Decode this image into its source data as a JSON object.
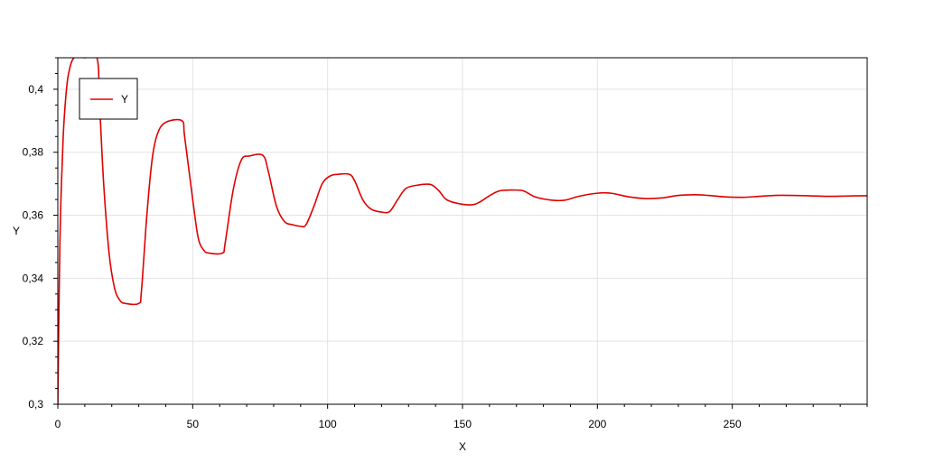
{
  "chart_data": {
    "type": "line",
    "xlabel": "X",
    "ylabel": "Y",
    "xlim": [
      0,
      300
    ],
    "ylim": [
      0.3,
      0.41
    ],
    "x_ticks": [
      0,
      50,
      100,
      150,
      200,
      250
    ],
    "x_tick_labels": [
      "0",
      "50",
      "100",
      "150",
      "200",
      "250"
    ],
    "y_ticks": [
      0.3,
      0.32,
      0.34,
      0.36,
      0.38,
      0.4
    ],
    "y_tick_labels": [
      "0,3",
      "0,32",
      "0,34",
      "0,36",
      "0,38",
      "0,4"
    ],
    "grid": true,
    "legend_position": "top-left",
    "series": [
      {
        "name": "Y",
        "color": "#e00000",
        "points": [
          [
            0,
            0.3
          ],
          [
            0.5,
            0.335
          ],
          [
            1,
            0.36
          ],
          [
            2,
            0.385
          ],
          [
            3,
            0.398
          ],
          [
            4,
            0.405
          ],
          [
            6,
            0.41
          ],
          [
            10,
            0.41
          ],
          [
            14.5,
            0.41
          ],
          [
            15.5,
            0.395
          ],
          [
            17,
            0.37
          ],
          [
            19,
            0.348
          ],
          [
            21,
            0.337
          ],
          [
            23,
            0.333
          ],
          [
            25,
            0.332
          ],
          [
            30,
            0.332
          ],
          [
            31,
            0.336
          ],
          [
            33,
            0.36
          ],
          [
            35,
            0.378
          ],
          [
            37,
            0.386
          ],
          [
            40,
            0.3895
          ],
          [
            46,
            0.39
          ],
          [
            47,
            0.385
          ],
          [
            50,
            0.365
          ],
          [
            52,
            0.353
          ],
          [
            54,
            0.349
          ],
          [
            56,
            0.348
          ],
          [
            61,
            0.348
          ],
          [
            62,
            0.351
          ],
          [
            65,
            0.368
          ],
          [
            68,
            0.3775
          ],
          [
            71,
            0.3788
          ],
          [
            76,
            0.379
          ],
          [
            78,
            0.374
          ],
          [
            81,
            0.363
          ],
          [
            84,
            0.358
          ],
          [
            87,
            0.357
          ],
          [
            90,
            0.3565
          ],
          [
            92,
            0.357
          ],
          [
            95,
            0.363
          ],
          [
            98,
            0.37
          ],
          [
            101,
            0.3725
          ],
          [
            104,
            0.373
          ],
          [
            108,
            0.373
          ],
          [
            110,
            0.371
          ],
          [
            113,
            0.365
          ],
          [
            116,
            0.362
          ],
          [
            120,
            0.361
          ],
          [
            123,
            0.3612
          ],
          [
            126,
            0.365
          ],
          [
            129,
            0.3685
          ],
          [
            133,
            0.3695
          ],
          [
            138,
            0.3698
          ],
          [
            141,
            0.368
          ],
          [
            144,
            0.365
          ],
          [
            148,
            0.3638
          ],
          [
            153,
            0.3633
          ],
          [
            156,
            0.364
          ],
          [
            160,
            0.3662
          ],
          [
            164,
            0.3678
          ],
          [
            170,
            0.368
          ],
          [
            173,
            0.3676
          ],
          [
            177,
            0.3658
          ],
          [
            183,
            0.3648
          ],
          [
            188,
            0.3648
          ],
          [
            193,
            0.366
          ],
          [
            200,
            0.367
          ],
          [
            205,
            0.367
          ],
          [
            212,
            0.3658
          ],
          [
            218,
            0.3653
          ],
          [
            224,
            0.3655
          ],
          [
            230,
            0.3663
          ],
          [
            236,
            0.3665
          ],
          [
            241,
            0.3663
          ],
          [
            248,
            0.3658
          ],
          [
            254,
            0.3657
          ],
          [
            260,
            0.366
          ],
          [
            266,
            0.3663
          ],
          [
            272,
            0.3663
          ],
          [
            278,
            0.3662
          ],
          [
            285,
            0.366
          ],
          [
            292,
            0.3661
          ],
          [
            300,
            0.3662
          ]
        ]
      }
    ]
  }
}
